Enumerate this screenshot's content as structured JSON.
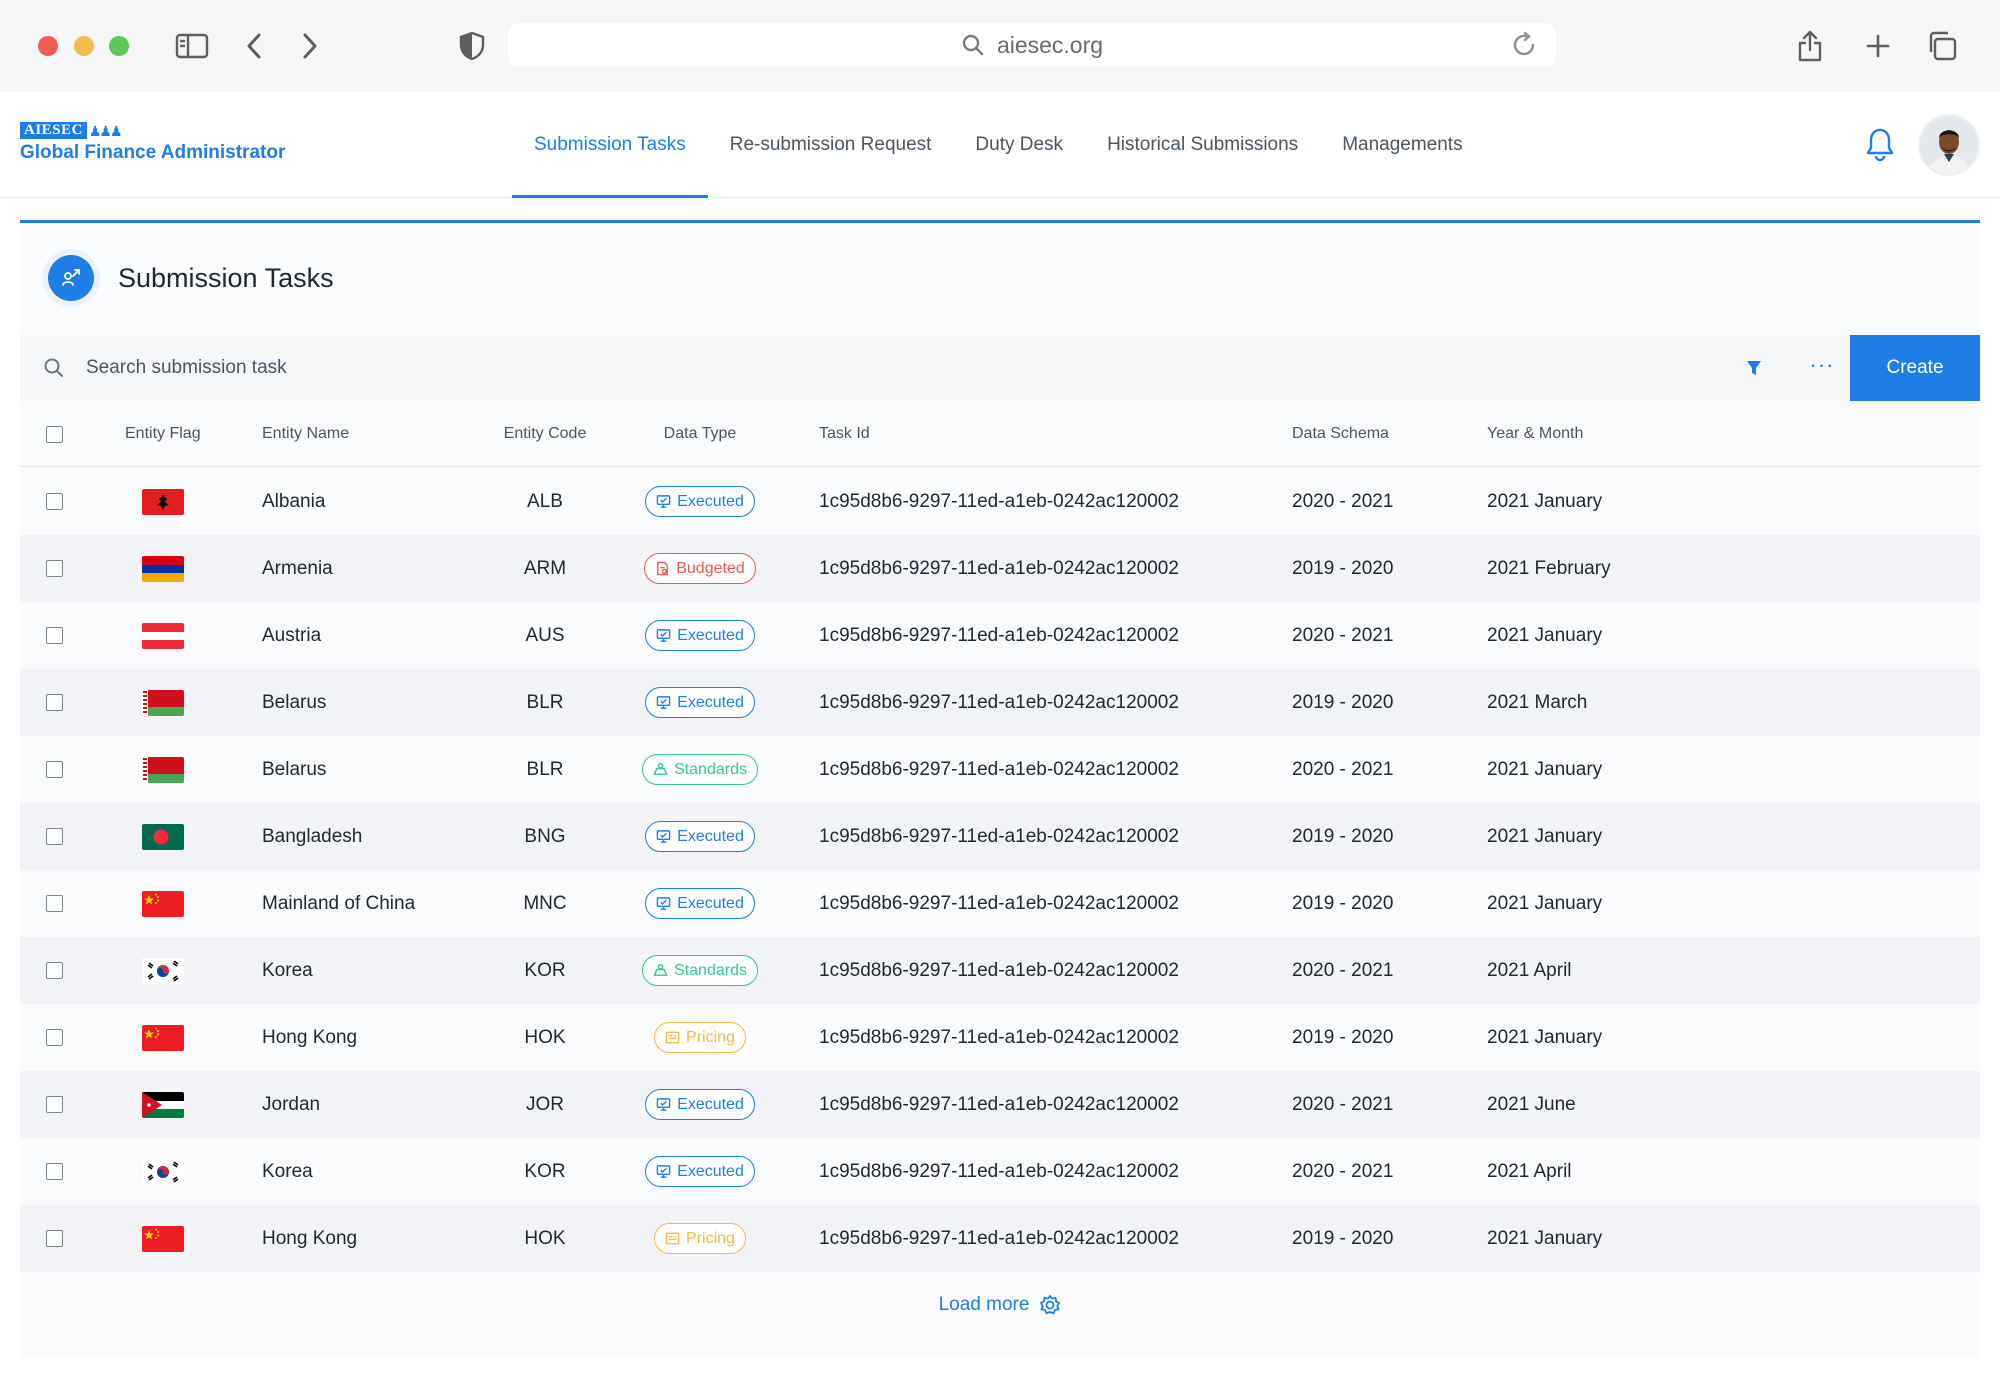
{
  "browser": {
    "url": "aiesec.org"
  },
  "app": {
    "logo_text": "AIESEC",
    "subtitle": "Global Finance Administrator"
  },
  "nav": {
    "items": [
      {
        "label": "Submission Tasks",
        "active": true
      },
      {
        "label": "Re-submission Request",
        "active": false
      },
      {
        "label": "Duty Desk",
        "active": false
      },
      {
        "label": "Historical Submissions",
        "active": false
      },
      {
        "label": "Managements",
        "active": false
      }
    ]
  },
  "page": {
    "title": "Submission Tasks"
  },
  "toolbar": {
    "search_placeholder": "Search submission task",
    "more_label": "···",
    "create_label": "Create"
  },
  "table": {
    "headers": {
      "flag": "Entity Flag",
      "name": "Entity Name",
      "code": "Entity Code",
      "type": "Data Type",
      "task": "Task Id",
      "schema": "Data Schema",
      "ym": "Year & Month"
    },
    "rows": [
      {
        "flag": "albania",
        "name": "Albania",
        "code": "ALB",
        "type": "Executed",
        "type_key": "executed",
        "task": "1c95d8b6-9297-11ed-a1eb-0242ac120002",
        "schema": "2020 - 2021",
        "ym": "2021 January"
      },
      {
        "flag": "armenia",
        "name": "Armenia",
        "code": "ARM",
        "type": "Budgeted",
        "type_key": "budgeted",
        "task": "1c95d8b6-9297-11ed-a1eb-0242ac120002",
        "schema": "2019 - 2020",
        "ym": "2021 February"
      },
      {
        "flag": "austria",
        "name": "Austria",
        "code": "AUS",
        "type": "Executed",
        "type_key": "executed",
        "task": "1c95d8b6-9297-11ed-a1eb-0242ac120002",
        "schema": "2020 - 2021",
        "ym": "2021 January"
      },
      {
        "flag": "belarus",
        "name": "Belarus",
        "code": "BLR",
        "type": "Executed",
        "type_key": "executed",
        "task": "1c95d8b6-9297-11ed-a1eb-0242ac120002",
        "schema": "2019 - 2020",
        "ym": "2021 March"
      },
      {
        "flag": "belarus",
        "name": "Belarus",
        "code": "BLR",
        "type": "Standards",
        "type_key": "standards",
        "task": "1c95d8b6-9297-11ed-a1eb-0242ac120002",
        "schema": "2020 - 2021",
        "ym": "2021 January"
      },
      {
        "flag": "bangladesh",
        "name": "Bangladesh",
        "code": "BNG",
        "type": "Executed",
        "type_key": "executed",
        "task": "1c95d8b6-9297-11ed-a1eb-0242ac120002",
        "schema": "2019 - 2020",
        "ym": "2021 January"
      },
      {
        "flag": "china",
        "name": "Mainland of China",
        "code": "MNC",
        "type": "Executed",
        "type_key": "executed",
        "task": "1c95d8b6-9297-11ed-a1eb-0242ac120002",
        "schema": "2019 - 2020",
        "ym": "2021 January"
      },
      {
        "flag": "korea",
        "name": "Korea",
        "code": "KOR",
        "type": "Standards",
        "type_key": "standards",
        "task": "1c95d8b6-9297-11ed-a1eb-0242ac120002",
        "schema": "2020 - 2021",
        "ym": "2021 April"
      },
      {
        "flag": "china",
        "name": "Hong Kong",
        "code": "HOK",
        "type": "Pricing",
        "type_key": "pricing",
        "task": "1c95d8b6-9297-11ed-a1eb-0242ac120002",
        "schema": "2019 - 2020",
        "ym": "2021 January"
      },
      {
        "flag": "jordan",
        "name": "Jordan",
        "code": "JOR",
        "type": "Executed",
        "type_key": "executed",
        "task": "1c95d8b6-9297-11ed-a1eb-0242ac120002",
        "schema": "2020 - 2021",
        "ym": "2021 June"
      },
      {
        "flag": "korea",
        "name": "Korea",
        "code": "KOR",
        "type": "Executed",
        "type_key": "executed",
        "task": "1c95d8b6-9297-11ed-a1eb-0242ac120002",
        "schema": "2020 - 2021",
        "ym": "2021 April"
      },
      {
        "flag": "china",
        "name": "Hong Kong",
        "code": "HOK",
        "type": "Pricing",
        "type_key": "pricing",
        "task": "1c95d8b6-9297-11ed-a1eb-0242ac120002",
        "schema": "2019 - 2020",
        "ym": "2021 January"
      }
    ]
  },
  "footer": {
    "load_more": "Load more"
  },
  "colors": {
    "primary": "#1f7ee5",
    "executed": "#1f7ee5",
    "budgeted": "#ef5a4e",
    "standards": "#39c49a",
    "pricing": "#f6b94a"
  }
}
